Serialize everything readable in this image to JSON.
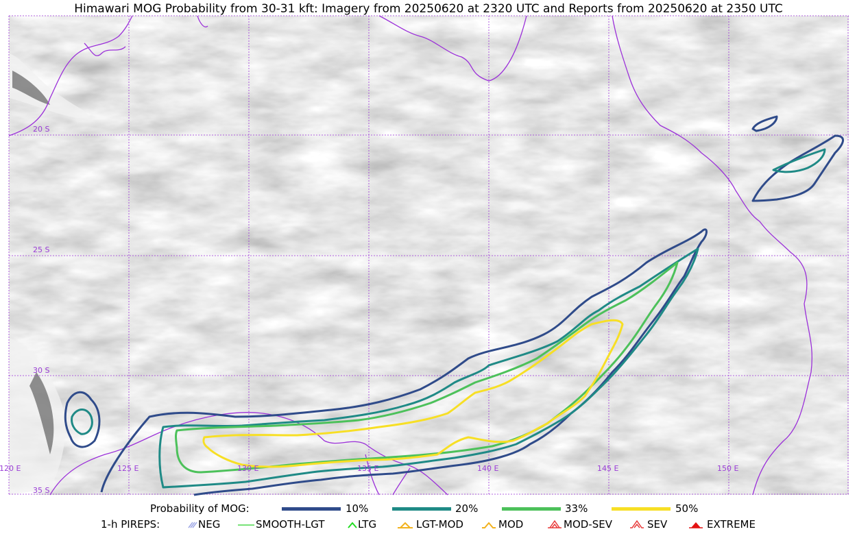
{
  "title": "Himawari MOG Probability from 30-31 kft: Imagery from 20250620 at 2320 UTC and Reports from 20250620 at 2350 UTC",
  "map": {
    "lat_labels": [
      "20 S",
      "25 S",
      "30 S",
      "35 S"
    ],
    "lon_labels": [
      "120 E",
      "125 E",
      "130 E",
      "135 E",
      "140 E",
      "145 E",
      "150 E"
    ],
    "colors": {
      "coastline": "#9b30d9",
      "gridline": "#9b30d9",
      "p10": "#2f4b8a",
      "p20": "#1f8a86",
      "p33": "#4cc15a",
      "p50": "#f7df25"
    }
  },
  "legend": {
    "probability_label": "Probability of MOG:",
    "levels": [
      {
        "label": "10%",
        "color": "#2f4b8a"
      },
      {
        "label": "20%",
        "color": "#1f8a86"
      },
      {
        "label": "33%",
        "color": "#4cc15a"
      },
      {
        "label": "50%",
        "color": "#f7df25"
      }
    ],
    "pireps_label": "1-h PIREPS:",
    "pireps": [
      {
        "label": "NEG",
        "icon": "neg-icon",
        "color": "#9fa8e6"
      },
      {
        "label": "SMOOTH-LGT",
        "icon": "smooth-lgt-icon",
        "color": "#4cd94c"
      },
      {
        "label": "LTG",
        "icon": "ltg-icon",
        "color": "#22dd22"
      },
      {
        "label": "LGT-MOD",
        "icon": "lgt-mod-icon",
        "color": "#f2b21f"
      },
      {
        "label": "MOD",
        "icon": "mod-icon",
        "color": "#f2b21f"
      },
      {
        "label": "MOD-SEV",
        "icon": "mod-sev-icon",
        "color": "#e83a3a"
      },
      {
        "label": "SEV",
        "icon": "sev-icon",
        "color": "#e83a3a"
      },
      {
        "label": "EXTREME",
        "icon": "extreme-icon",
        "color": "#e31212"
      }
    ]
  }
}
